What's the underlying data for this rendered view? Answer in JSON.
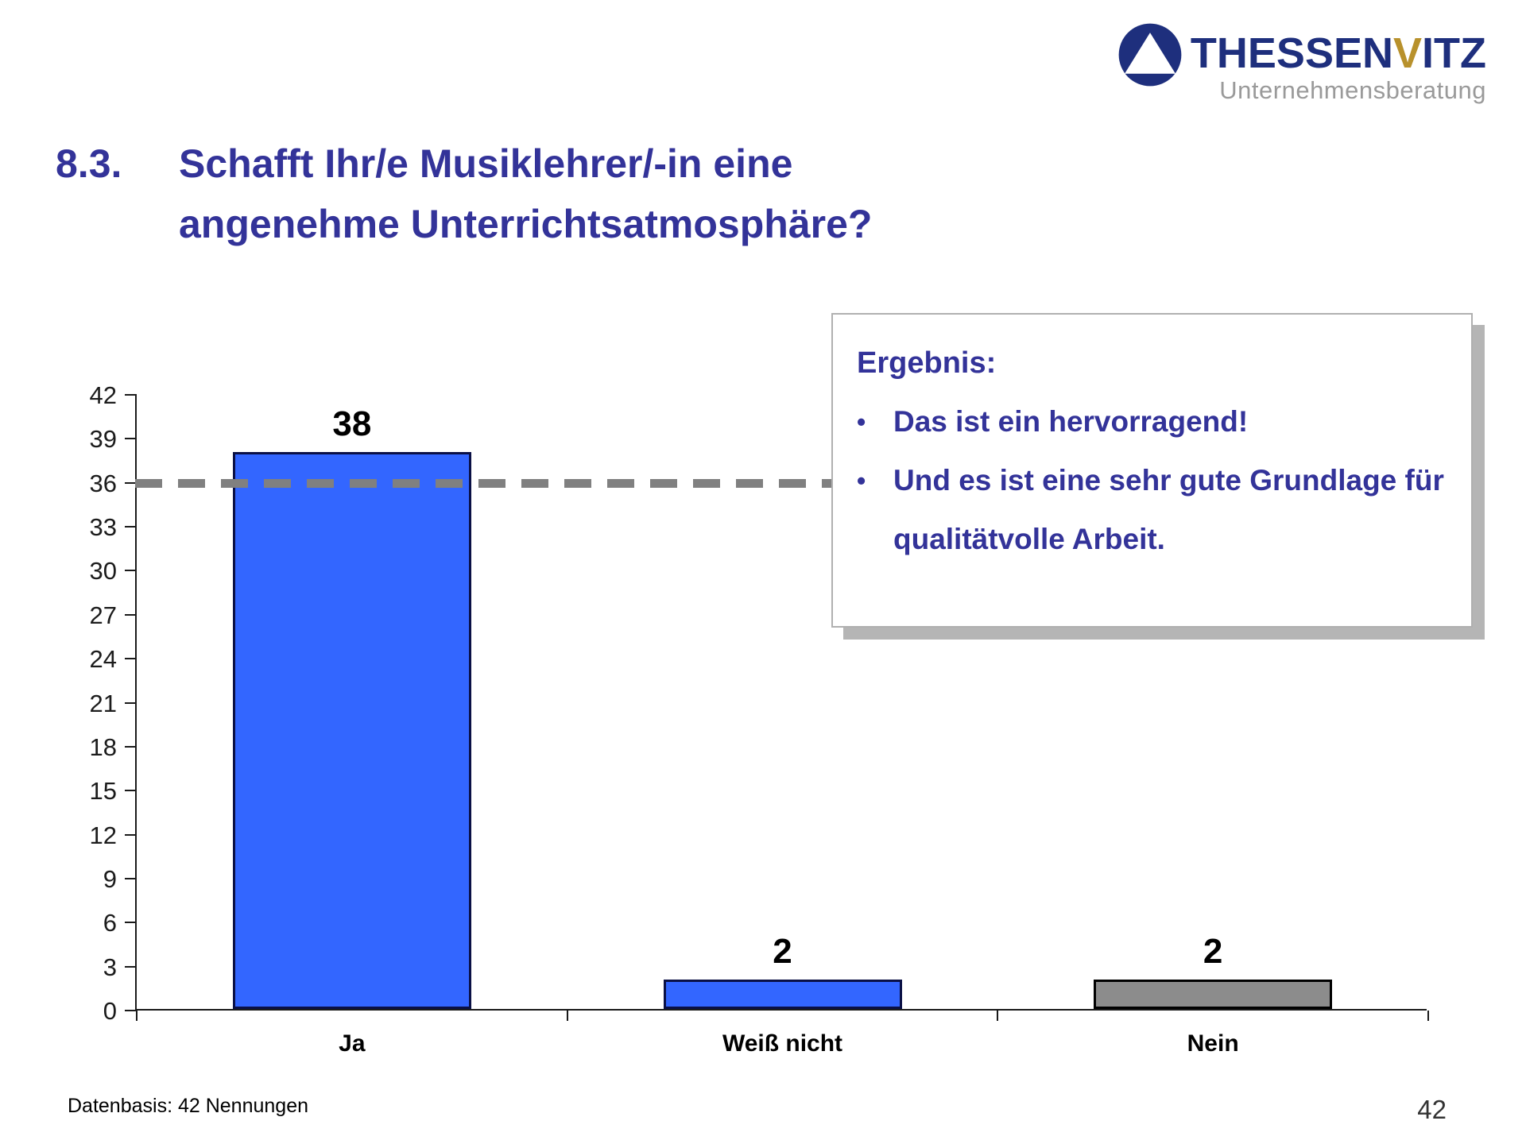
{
  "logo": {
    "wordmark": {
      "part1": "THESSEN",
      "part2": "V",
      "part3": "ITZ"
    },
    "subtitle": "Unternehmensberatung",
    "colors": {
      "navy": "#1e2f7d",
      "gold": "#b8912c",
      "subtitle_gray": "#9a9a9a"
    }
  },
  "title": {
    "number": "8.3.",
    "line1": "Schafft Ihr/e Musiklehrer/-in eine",
    "line2": "angenehme Unterrichtsatmosphäre?",
    "color": "#333399"
  },
  "chart_data": {
    "type": "bar",
    "categories": [
      "Ja",
      "Weiß nicht",
      "Nein"
    ],
    "values": [
      38,
      2,
      2
    ],
    "data_labels": [
      "38",
      "2",
      "2"
    ],
    "bar_colors": [
      "#3366FF",
      "#3366FF",
      "#8C8C8C"
    ],
    "bar_border_colors": [
      "#0a1045",
      "#0a1045",
      "#000000"
    ],
    "ylim": [
      0,
      42
    ],
    "ytick_step": 3,
    "reference_line": {
      "value": 36,
      "style": "dashed",
      "color": "#808080"
    },
    "grid": false,
    "legend": false,
    "title": "",
    "xlabel": "",
    "ylabel": ""
  },
  "ergebnis": {
    "heading": "Ergebnis:",
    "bullets": [
      "Das ist ein hervorragend!",
      "Und es ist eine sehr gute Grundlage für qualitätvolle Arbeit."
    ]
  },
  "footer": {
    "datenbasis": "Datenbasis: 42 Nennungen",
    "page_number": "42"
  }
}
